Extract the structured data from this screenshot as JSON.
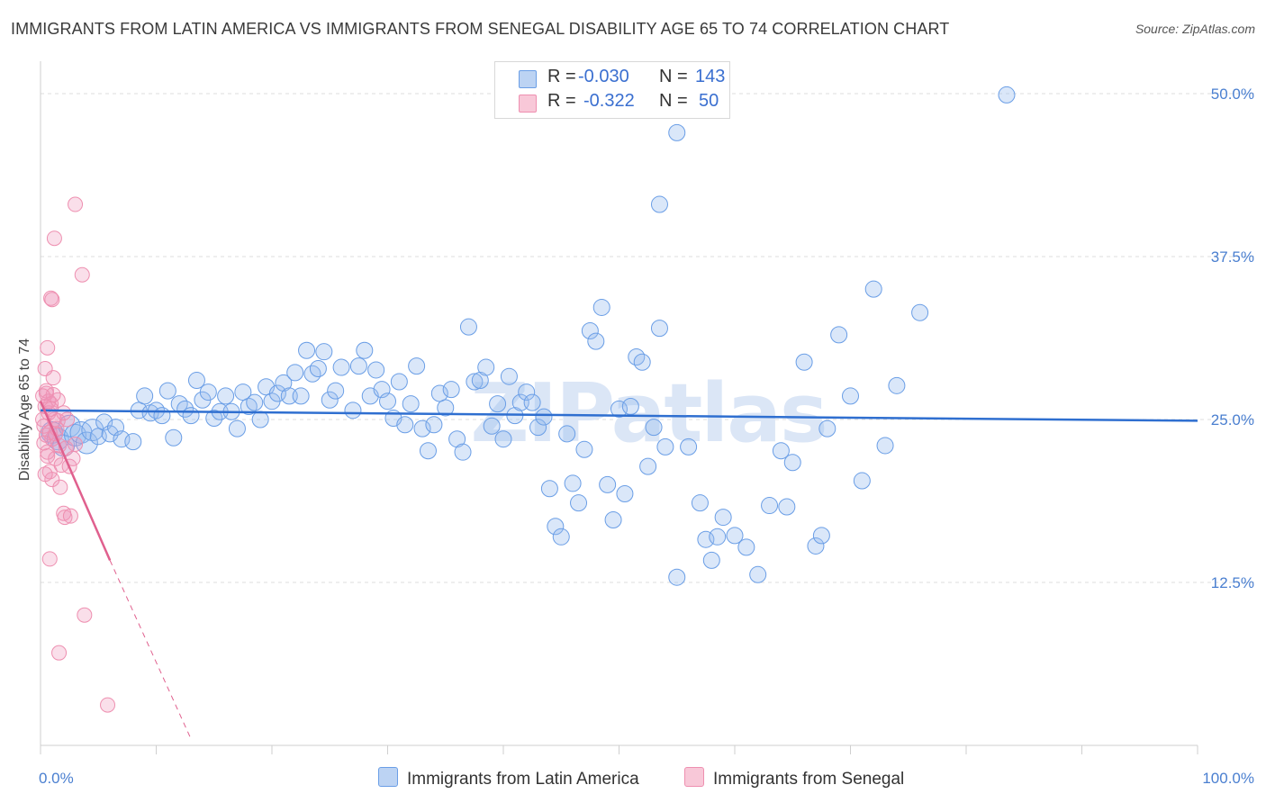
{
  "header": {
    "title": "IMMIGRANTS FROM LATIN AMERICA VS IMMIGRANTS FROM SENEGAL DISABILITY AGE 65 TO 74 CORRELATION CHART",
    "source": "Source: ZipAtlas.com"
  },
  "watermark": "ZIPatlas",
  "colors": {
    "blue": "#6a9ee6",
    "blue_line": "#2f6fd0",
    "pink": "#ee8fb0",
    "pink_line": "#e0608e",
    "tick_text": "#4a7fd0"
  },
  "legend_top": {
    "rows": [
      {
        "r_key": "R =",
        "r_val": "-0.030",
        "n_key": "N =",
        "n_val": "143"
      },
      {
        "r_key": "R =",
        "r_val": "-0.322",
        "n_key": "N =",
        "n_val": "50"
      }
    ]
  },
  "legend_bottom": {
    "series": [
      {
        "label": "Immigrants from Latin America"
      },
      {
        "label": "Immigrants from Senegal"
      }
    ]
  },
  "chart_data": {
    "type": "scatter",
    "ylabel": "Disability Age 65 to 74",
    "xlim": [
      0,
      100
    ],
    "ylim": [
      0,
      52
    ],
    "x_tick_labels": [
      "0.0%",
      "100.0%"
    ],
    "y_ticks": [
      12.5,
      25.0,
      37.5,
      50.0
    ],
    "y_tick_labels": [
      "12.5%",
      "25.0%",
      "37.5%",
      "50.0%"
    ],
    "grid": true,
    "legend": "top-center",
    "series": [
      {
        "name": "Immigrants from Latin America",
        "r": -0.03,
        "n": 143,
        "trend": {
          "x0": 0,
          "y0": 25.7,
          "x1": 100,
          "y1": 24.9
        },
        "points": [
          [
            1,
            24.0
          ],
          [
            1.5,
            23.5
          ],
          [
            2,
            23.0
          ],
          [
            2.5,
            24.5
          ],
          [
            3,
            23.8
          ],
          [
            3.5,
            24.0
          ],
          [
            4,
            23.2
          ],
          [
            4.5,
            24.2
          ],
          [
            5,
            23.7
          ],
          [
            5.5,
            24.8
          ],
          [
            6,
            23.9
          ],
          [
            6.5,
            24.4
          ],
          [
            7,
            23.5
          ],
          [
            8,
            23.3
          ],
          [
            8.5,
            25.7
          ],
          [
            9,
            26.8
          ],
          [
            9.5,
            25.5
          ],
          [
            10,
            25.7
          ],
          [
            10.5,
            25.3
          ],
          [
            11,
            27.2
          ],
          [
            11.5,
            23.6
          ],
          [
            12,
            26.2
          ],
          [
            12.5,
            25.8
          ],
          [
            13,
            25.3
          ],
          [
            13.5,
            28.0
          ],
          [
            14,
            26.5
          ],
          [
            14.5,
            27.1
          ],
          [
            15,
            25.1
          ],
          [
            15.5,
            25.6
          ],
          [
            16,
            26.8
          ],
          [
            16.5,
            25.6
          ],
          [
            17,
            24.3
          ],
          [
            17.5,
            27.1
          ],
          [
            18,
            26.0
          ],
          [
            18.5,
            26.3
          ],
          [
            19,
            25.0
          ],
          [
            19.5,
            27.5
          ],
          [
            20,
            26.4
          ],
          [
            20.5,
            27.0
          ],
          [
            21,
            27.8
          ],
          [
            21.5,
            26.8
          ],
          [
            22,
            28.6
          ],
          [
            22.5,
            26.8
          ],
          [
            23,
            30.3
          ],
          [
            23.5,
            28.5
          ],
          [
            24,
            28.9
          ],
          [
            24.5,
            30.2
          ],
          [
            25,
            26.5
          ],
          [
            25.5,
            27.2
          ],
          [
            26,
            29.0
          ],
          [
            27,
            25.7
          ],
          [
            27.5,
            29.1
          ],
          [
            28,
            30.3
          ],
          [
            28.5,
            26.8
          ],
          [
            29,
            28.8
          ],
          [
            29.5,
            27.3
          ],
          [
            30,
            26.4
          ],
          [
            30.5,
            25.1
          ],
          [
            31,
            27.9
          ],
          [
            31.5,
            24.6
          ],
          [
            32,
            26.2
          ],
          [
            32.5,
            29.1
          ],
          [
            33,
            24.3
          ],
          [
            33.5,
            22.6
          ],
          [
            34,
            24.6
          ],
          [
            34.5,
            27.0
          ],
          [
            35,
            25.9
          ],
          [
            35.5,
            27.3
          ],
          [
            36,
            23.5
          ],
          [
            36.5,
            22.5
          ],
          [
            37,
            32.1
          ],
          [
            37.5,
            27.9
          ],
          [
            38,
            28.0
          ],
          [
            38.5,
            29.0
          ],
          [
            39,
            24.5
          ],
          [
            39.5,
            26.2
          ],
          [
            40,
            23.5
          ],
          [
            40.5,
            28.3
          ],
          [
            41,
            25.3
          ],
          [
            41.5,
            26.3
          ],
          [
            42,
            27.1
          ],
          [
            42.5,
            26.3
          ],
          [
            43,
            24.4
          ],
          [
            43.5,
            25.2
          ],
          [
            44,
            19.7
          ],
          [
            44.5,
            16.8
          ],
          [
            45,
            16.0
          ],
          [
            45.5,
            23.9
          ],
          [
            46,
            20.1
          ],
          [
            46.5,
            18.6
          ],
          [
            47,
            22.7
          ],
          [
            47.5,
            31.8
          ],
          [
            48,
            31.0
          ],
          [
            48.5,
            33.6
          ],
          [
            49,
            20.0
          ],
          [
            49.5,
            17.3
          ],
          [
            50,
            25.8
          ],
          [
            50.5,
            19.3
          ],
          [
            51,
            26.0
          ],
          [
            51.5,
            29.8
          ],
          [
            52,
            29.4
          ],
          [
            52.5,
            21.4
          ],
          [
            53,
            24.4
          ],
          [
            53.5,
            32.0
          ],
          [
            54,
            22.9
          ],
          [
            55,
            12.9
          ],
          [
            56,
            22.9
          ],
          [
            57,
            18.6
          ],
          [
            57.5,
            15.8
          ],
          [
            58,
            14.2
          ],
          [
            58.5,
            16.0
          ],
          [
            59,
            17.5
          ],
          [
            60,
            16.1
          ],
          [
            61,
            15.2
          ],
          [
            62,
            13.1
          ],
          [
            63,
            18.4
          ],
          [
            64,
            22.6
          ],
          [
            64.5,
            18.3
          ],
          [
            65,
            21.7
          ],
          [
            66,
            29.4
          ],
          [
            67,
            15.3
          ],
          [
            67.5,
            16.1
          ],
          [
            68,
            24.3
          ],
          [
            69,
            31.5
          ],
          [
            70,
            26.8
          ],
          [
            71,
            20.3
          ],
          [
            72,
            35.0
          ],
          [
            73,
            23.0
          ],
          [
            74,
            27.6
          ],
          [
            76,
            33.2
          ],
          [
            53.5,
            41.5
          ],
          [
            83.5,
            49.9
          ],
          [
            54.8,
            49.2
          ],
          [
            55,
            47.0
          ]
        ]
      },
      {
        "name": "Immigrants from Senegal",
        "r": -0.322,
        "n": 50,
        "trend": {
          "x0": 0,
          "y0": 26.4,
          "x1": 6,
          "y1": 14.2,
          "dash_x1": 13,
          "dash_y1": 0.5
        },
        "points": [
          [
            0.2,
            25.0
          ],
          [
            0.3,
            24.5
          ],
          [
            0.4,
            26.0
          ],
          [
            0.5,
            23.8
          ],
          [
            0.5,
            27.0
          ],
          [
            0.6,
            22.5
          ],
          [
            0.7,
            25.5
          ],
          [
            0.8,
            24.0
          ],
          [
            0.8,
            21.0
          ],
          [
            0.9,
            26.2
          ],
          [
            1.0,
            23.5
          ],
          [
            1.0,
            20.4
          ],
          [
            1.1,
            28.2
          ],
          [
            1.2,
            25.0
          ],
          [
            1.3,
            22.0
          ],
          [
            1.4,
            24.3
          ],
          [
            1.5,
            26.5
          ],
          [
            1.6,
            23.0
          ],
          [
            1.7,
            19.8
          ],
          [
            1.8,
            21.5
          ],
          [
            2.0,
            17.8
          ],
          [
            2.1,
            17.5
          ],
          [
            2.2,
            22.8
          ],
          [
            2.3,
            25.0
          ],
          [
            2.5,
            21.4
          ],
          [
            2.6,
            17.6
          ],
          [
            2.8,
            22.0
          ],
          [
            3.0,
            23.1
          ],
          [
            0.6,
            30.5
          ],
          [
            0.4,
            28.9
          ],
          [
            0.9,
            34.3
          ],
          [
            1.0,
            34.2
          ],
          [
            1.2,
            38.9
          ],
          [
            3.0,
            41.5
          ],
          [
            3.6,
            36.1
          ],
          [
            0.5,
            27.2
          ],
          [
            0.7,
            26.4
          ],
          [
            0.9,
            25.8
          ],
          [
            1.1,
            26.9
          ],
          [
            0.3,
            23.2
          ],
          [
            0.8,
            14.3
          ],
          [
            1.6,
            7.1
          ],
          [
            3.8,
            10.0
          ],
          [
            5.8,
            3.1
          ],
          [
            0.6,
            22.2
          ],
          [
            0.4,
            20.8
          ],
          [
            1.3,
            23.9
          ],
          [
            0.2,
            26.8
          ],
          [
            1.5,
            24.9
          ],
          [
            2.0,
            25.5
          ]
        ]
      }
    ]
  }
}
